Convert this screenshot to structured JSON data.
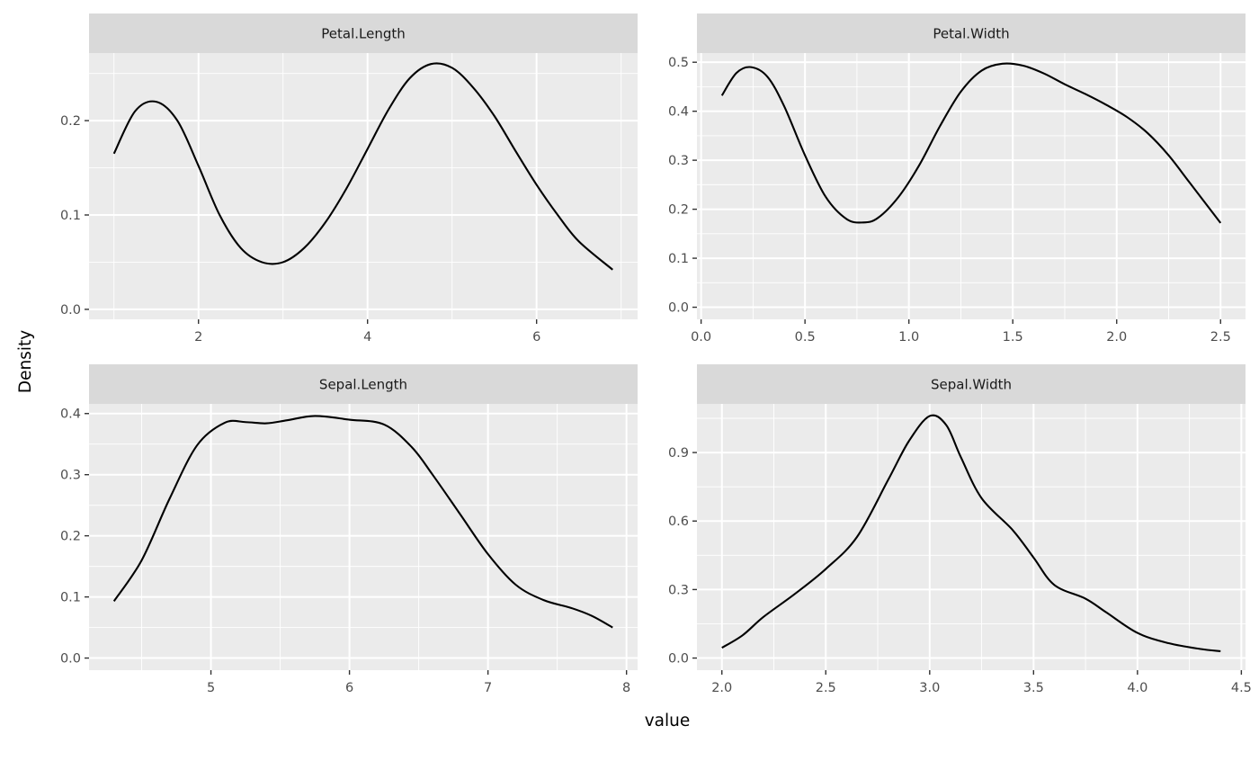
{
  "xlabel": "value",
  "ylabel": "Density",
  "colors": {
    "panel": "#ebebeb",
    "strip": "#d9d9d9",
    "grid": "#ffffff",
    "line": "#000000"
  },
  "chart_data": [
    {
      "type": "line",
      "title": "Petal.Length",
      "xticks": [
        2,
        4,
        6
      ],
      "xtick_labels": [
        "2",
        "4",
        "6"
      ],
      "yticks": [
        0.0,
        0.1,
        0.2
      ],
      "ytick_labels": [
        "0.0",
        "0.1",
        "0.2"
      ],
      "xlim": [
        0.705,
        7.195
      ],
      "ylim": [
        -0.0106,
        0.2716
      ],
      "x": [
        1.0,
        1.25,
        1.5,
        1.75,
        2.0,
        2.25,
        2.5,
        2.75,
        3.0,
        3.25,
        3.5,
        3.75,
        4.0,
        4.25,
        4.5,
        4.75,
        5.0,
        5.25,
        5.5,
        5.75,
        6.0,
        6.25,
        6.5,
        6.9
      ],
      "y": [
        0.165,
        0.21,
        0.22,
        0.2,
        0.152,
        0.1,
        0.065,
        0.05,
        0.05,
        0.065,
        0.092,
        0.128,
        0.17,
        0.212,
        0.245,
        0.26,
        0.256,
        0.235,
        0.205,
        0.168,
        0.132,
        0.1,
        0.072,
        0.042
      ]
    },
    {
      "type": "line",
      "title": "Petal.Width",
      "xticks": [
        0.0,
        0.5,
        1.0,
        1.5,
        2.0,
        2.5
      ],
      "xtick_labels": [
        "0.0",
        "0.5",
        "1.0",
        "1.5",
        "2.0",
        "2.5"
      ],
      "yticks": [
        0.0,
        0.1,
        0.2,
        0.3,
        0.4,
        0.5
      ],
      "ytick_labels": [
        "0.0",
        "0.1",
        "0.2",
        "0.3",
        "0.4",
        "0.5"
      ],
      "xlim": [
        -0.02,
        2.62
      ],
      "ylim": [
        -0.0247,
        0.5187
      ],
      "x": [
        0.1,
        0.17,
        0.24,
        0.32,
        0.4,
        0.5,
        0.6,
        0.7,
        0.78,
        0.85,
        0.95,
        1.05,
        1.15,
        1.25,
        1.35,
        1.45,
        1.55,
        1.65,
        1.75,
        1.85,
        1.95,
        2.05,
        2.15,
        2.25,
        2.35,
        2.5
      ],
      "y": [
        0.432,
        0.478,
        0.49,
        0.47,
        0.41,
        0.31,
        0.225,
        0.18,
        0.173,
        0.182,
        0.225,
        0.29,
        0.37,
        0.44,
        0.483,
        0.497,
        0.493,
        0.477,
        0.455,
        0.435,
        0.413,
        0.388,
        0.355,
        0.31,
        0.255,
        0.172
      ]
    },
    {
      "type": "line",
      "title": "Sepal.Length",
      "xticks": [
        5,
        6,
        7,
        8
      ],
      "xtick_labels": [
        "5",
        "6",
        "7",
        "8"
      ],
      "yticks": [
        0.0,
        0.1,
        0.2,
        0.3,
        0.4
      ],
      "ytick_labels": [
        "0.0",
        "0.1",
        "0.2",
        "0.3",
        "0.4"
      ],
      "xlim": [
        4.12,
        8.08
      ],
      "ylim": [
        -0.0198,
        0.4158
      ],
      "x": [
        4.3,
        4.5,
        4.7,
        4.9,
        5.1,
        5.25,
        5.4,
        5.55,
        5.75,
        6.0,
        6.25,
        6.45,
        6.6,
        6.8,
        7.0,
        7.2,
        7.4,
        7.6,
        7.75,
        7.9
      ],
      "y": [
        0.093,
        0.16,
        0.26,
        0.348,
        0.385,
        0.386,
        0.384,
        0.389,
        0.396,
        0.39,
        0.382,
        0.345,
        0.3,
        0.235,
        0.17,
        0.12,
        0.095,
        0.082,
        0.069,
        0.05
      ]
    },
    {
      "type": "line",
      "title": "Sepal.Width",
      "xticks": [
        2.0,
        2.5,
        3.0,
        3.5,
        4.0,
        4.5
      ],
      "xtick_labels": [
        "2.0",
        "2.5",
        "3.0",
        "3.5",
        "4.0",
        "4.5"
      ],
      "yticks": [
        0.0,
        0.3,
        0.6,
        0.9
      ],
      "ytick_labels": [
        "0.0",
        "0.3",
        "0.6",
        "0.9"
      ],
      "xlim": [
        1.88,
        4.52
      ],
      "ylim": [
        -0.053,
        1.113
      ],
      "x": [
        2.0,
        2.1,
        2.2,
        2.35,
        2.5,
        2.65,
        2.8,
        2.9,
        3.0,
        3.08,
        3.15,
        3.25,
        3.4,
        3.5,
        3.6,
        3.75,
        3.85,
        4.0,
        4.15,
        4.3,
        4.4
      ],
      "y": [
        0.045,
        0.1,
        0.18,
        0.28,
        0.39,
        0.53,
        0.78,
        0.95,
        1.06,
        1.02,
        0.88,
        0.7,
        0.56,
        0.44,
        0.32,
        0.26,
        0.2,
        0.11,
        0.065,
        0.04,
        0.03
      ]
    }
  ]
}
